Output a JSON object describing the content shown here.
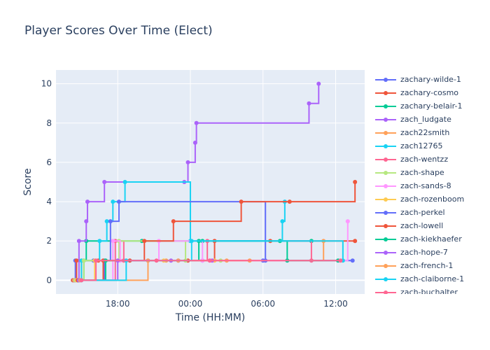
{
  "chart_data": {
    "type": "line",
    "line_shape": "step",
    "title": "Player Scores Over Time (Elect)",
    "xlabel": "Time (HH:MM)",
    "ylabel": "Score",
    "x_ticks": [
      "18:00",
      "00:00",
      "06:00",
      "12:00"
    ],
    "x_tick_hours": [
      18,
      24,
      30,
      36
    ],
    "y_ticks": [
      0,
      2,
      4,
      6,
      8,
      10
    ],
    "xlim_hours": [
      12.9,
      38.4
    ],
    "ylim": [
      -0.7,
      10.7
    ],
    "grid": true,
    "legend_position": "right",
    "series": [
      {
        "name": "zachary-wilde-1",
        "color": "#636efa",
        "points": [
          [
            14.3,
            0
          ],
          [
            14.5,
            1
          ],
          [
            16.0,
            1
          ],
          [
            20.5,
            1
          ],
          [
            23.0,
            1
          ],
          [
            25.0,
            1
          ],
          [
            30.0,
            1
          ],
          [
            37.4,
            1
          ]
        ]
      },
      {
        "name": "zachary-cosmo",
        "color": "#EF553B",
        "points": [
          [
            14.3,
            0
          ],
          [
            14.6,
            1
          ],
          [
            16.4,
            1
          ],
          [
            19.0,
            1
          ],
          [
            23.8,
            1
          ],
          [
            26.0,
            2
          ],
          [
            30.6,
            2
          ],
          [
            37.6,
            2
          ]
        ]
      },
      {
        "name": "zachary-belair-1",
        "color": "#00cc96",
        "points": [
          [
            14.4,
            0
          ],
          [
            15.2,
            1
          ],
          [
            15.4,
            2
          ],
          [
            20.0,
            2
          ],
          [
            25.0,
            2
          ],
          [
            31.4,
            2
          ],
          [
            34.0,
            2
          ]
        ]
      },
      {
        "name": "zach_ludgate",
        "color": "#ab63fa",
        "points": [
          [
            14.4,
            0
          ],
          [
            14.8,
            2
          ],
          [
            15.4,
            3
          ],
          [
            15.5,
            4
          ],
          [
            16.9,
            5
          ],
          [
            23.5,
            5
          ],
          [
            23.8,
            6
          ],
          [
            24.4,
            7
          ],
          [
            24.5,
            8
          ],
          [
            33.8,
            9
          ],
          [
            34.6,
            10
          ]
        ]
      },
      {
        "name": "zach22smith",
        "color": "#FFA15A",
        "points": [
          [
            14.4,
            0
          ],
          [
            15.0,
            1
          ],
          [
            18.5,
            1
          ],
          [
            22.0,
            1
          ],
          [
            27.0,
            1
          ],
          [
            35.0,
            2
          ]
        ]
      },
      {
        "name": "zach12765",
        "color": "#19d3f3",
        "points": [
          [
            14.5,
            0
          ],
          [
            15.0,
            1
          ],
          [
            16.5,
            2
          ],
          [
            17.1,
            3
          ],
          [
            17.6,
            4
          ],
          [
            18.6,
            5
          ],
          [
            24.0,
            2
          ],
          [
            31.6,
            3
          ],
          [
            31.8,
            4
          ]
        ]
      },
      {
        "name": "zach-wentzz",
        "color": "#FF6692",
        "points": [
          [
            14.5,
            0
          ],
          [
            17.8,
            2
          ],
          [
            18.5,
            1
          ],
          [
            25.4,
            2
          ],
          [
            34.0,
            1
          ]
        ]
      },
      {
        "name": "zach-shape",
        "color": "#B6E880",
        "points": [
          [
            14.5,
            0
          ],
          [
            15.2,
            1
          ],
          [
            18.1,
            2
          ],
          [
            23.6,
            1
          ],
          [
            26.5,
            1
          ]
        ]
      },
      {
        "name": "zach-sands-8",
        "color": "#FF97FF",
        "points": [
          [
            14.6,
            0
          ],
          [
            17.6,
            2
          ],
          [
            18.2,
            1
          ],
          [
            21.4,
            2
          ],
          [
            25.0,
            1
          ],
          [
            37.0,
            3
          ]
        ]
      },
      {
        "name": "zach-rozenboom",
        "color": "#FECB52",
        "points": [
          [
            14.6,
            0
          ],
          [
            16.1,
            1
          ],
          [
            21.8,
            1
          ],
          [
            26.0,
            1
          ]
        ]
      },
      {
        "name": "zach-perkel",
        "color": "#636efa",
        "points": [
          [
            14.7,
            0
          ],
          [
            16.9,
            1
          ],
          [
            17.4,
            3
          ],
          [
            18.1,
            4
          ],
          [
            30.2,
            1
          ]
        ]
      },
      {
        "name": "zach-lowell",
        "color": "#EF553B",
        "points": [
          [
            14.7,
            0
          ],
          [
            16.8,
            1
          ],
          [
            20.2,
            2
          ],
          [
            22.6,
            3
          ],
          [
            28.2,
            4
          ],
          [
            32.2,
            4
          ],
          [
            37.6,
            5
          ]
        ]
      },
      {
        "name": "zach-kiekhaefer",
        "color": "#00cc96",
        "points": [
          [
            14.8,
            0
          ],
          [
            17.0,
            1
          ],
          [
            24.7,
            2
          ],
          [
            32.0,
            1
          ],
          [
            36.2,
            1
          ]
        ]
      },
      {
        "name": "zach-hope-7",
        "color": "#ab63fa",
        "points": [
          [
            14.8,
            0
          ],
          [
            18.0,
            1
          ],
          [
            22.4,
            1
          ],
          [
            25.8,
            1
          ]
        ]
      },
      {
        "name": "zach-french-1",
        "color": "#FFA15A",
        "points": [
          [
            14.9,
            0
          ],
          [
            20.5,
            1
          ],
          [
            23.0,
            1
          ],
          [
            28.9,
            1
          ]
        ]
      },
      {
        "name": "zach-claiborne-1",
        "color": "#19d3f3",
        "points": [
          [
            15.0,
            0
          ],
          [
            18.7,
            1
          ],
          [
            24.1,
            2
          ],
          [
            36.6,
            1
          ]
        ]
      },
      {
        "name": "zach-buchalter",
        "color": "#FF6692",
        "points": [
          [
            15.0,
            0
          ],
          [
            16.2,
            1
          ],
          [
            21.2,
            1
          ],
          [
            25.6,
            1
          ],
          [
            36.4,
            1
          ]
        ]
      }
    ]
  }
}
